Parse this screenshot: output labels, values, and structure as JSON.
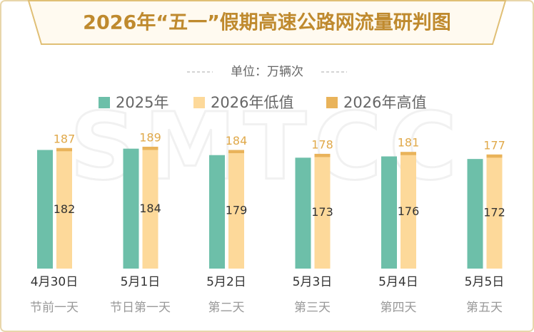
{
  "chart_data": {
    "type": "bar",
    "title": "2026年“五一”假期高速公路网流量研判图",
    "subtitle": "单位：万辆次",
    "watermark": "SMTCC",
    "categories": [
      "4月30日",
      "5月1日",
      "5月2日",
      "5月3日",
      "5月4日",
      "5月5日"
    ],
    "subcategories": [
      "节前一天",
      "节日第一天",
      "第二天",
      "第三天",
      "第四天",
      "第五天"
    ],
    "series": [
      {
        "name": "2025年",
        "color": "#6dbfa9",
        "values": [
          184,
          186,
          176,
          172,
          174,
          170
        ]
      },
      {
        "name": "2026年低值",
        "color": "#fdd99a",
        "values": [
          182,
          184,
          179,
          173,
          176,
          172
        ]
      },
      {
        "name": "2026年高值",
        "color": "#e9b35a",
        "values": [
          187,
          189,
          184,
          178,
          181,
          177
        ]
      }
    ],
    "ylim": [
      0,
      200
    ]
  }
}
